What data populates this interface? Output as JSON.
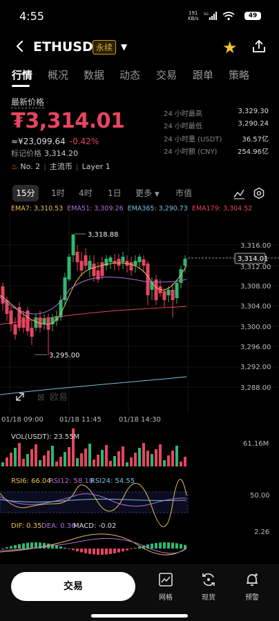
{
  "status_bar": {
    "time": "4:55",
    "net_speed": "191",
    "net_unit": "KB/s",
    "battery": "49"
  },
  "header": {
    "pair": "ETHUSDT",
    "badge": "永续"
  },
  "tabs": [
    "行情",
    "概况",
    "数据",
    "动态",
    "交易",
    "跟单",
    "策略"
  ],
  "ticker": {
    "latest_label": "最新价格",
    "price": "₮3,314.01",
    "cny_price": "≈¥23,099.64",
    "change": "-0.42%",
    "mark_label": "标记价格",
    "mark_price": "3,314.20",
    "rank": "No. 2",
    "tag1": "主流币",
    "tag2": "Layer 1"
  },
  "stats": [
    {
      "label": "24 小时最高",
      "value": "3,329.30"
    },
    {
      "label": "24 小时最低",
      "value": "3,290.24"
    },
    {
      "label": "24 小时量 (USDT)",
      "value": "36.57亿"
    },
    {
      "label": "24 小时额 (CNY)",
      "value": "254.96亿"
    }
  ],
  "timeframes": {
    "selected": "15分",
    "items": [
      "1时",
      "4时",
      "1日"
    ],
    "more": "更多",
    "market_cap": "市值"
  },
  "ema": [
    {
      "text": "EMA7: 3,310.53",
      "color": "#e8c15a"
    },
    {
      "text": "EMA51: 3,309.26",
      "color": "#b06fd8"
    },
    {
      "text": "EMA365: 3,290.73",
      "color": "#76c3e0"
    },
    {
      "text": "EMA179: 3,304.52",
      "color": "#e6455f"
    }
  ],
  "chart_data": {
    "type": "candlestick",
    "price_axis": [
      "3,316.00",
      "3,312.00",
      "3,308.00",
      "3,304.00",
      "3,300.00",
      "3,296.00",
      "3,292.00",
      "3,288.00"
    ],
    "time_axis": [
      "01/18 09:00",
      "01/18 11:45",
      "01/18 14:30"
    ],
    "high_label": "3,318.88",
    "low_label": "3,295.00",
    "current_price_tag": "3,314.01",
    "watermark": "欧易"
  },
  "indicators": {
    "vol_label": "VOL(USDT): 23.55M",
    "vol_axis": "61.16M",
    "rsi_labels": [
      {
        "text": "RSI6: 66.04",
        "color": "#e8c15a"
      },
      {
        "text": "RSI12: 58.18",
        "color": "#b06fd8"
      },
      {
        "text": "RSI24: 54.55",
        "color": "#76c3e0"
      }
    ],
    "rsi_axis": "50.00",
    "macd_labels": [
      {
        "text": "DIF: 0.35",
        "color": "#e8c15a"
      },
      {
        "text": "DEA: 0.36",
        "color": "#b06fd8"
      },
      {
        "text": "MACD: -0.02",
        "color": "#ddd"
      }
    ],
    "macd_axis": "2.26"
  },
  "bottom_bar": {
    "trade": "交易",
    "grid": "网格",
    "spot": "现货",
    "alert": "预警"
  }
}
